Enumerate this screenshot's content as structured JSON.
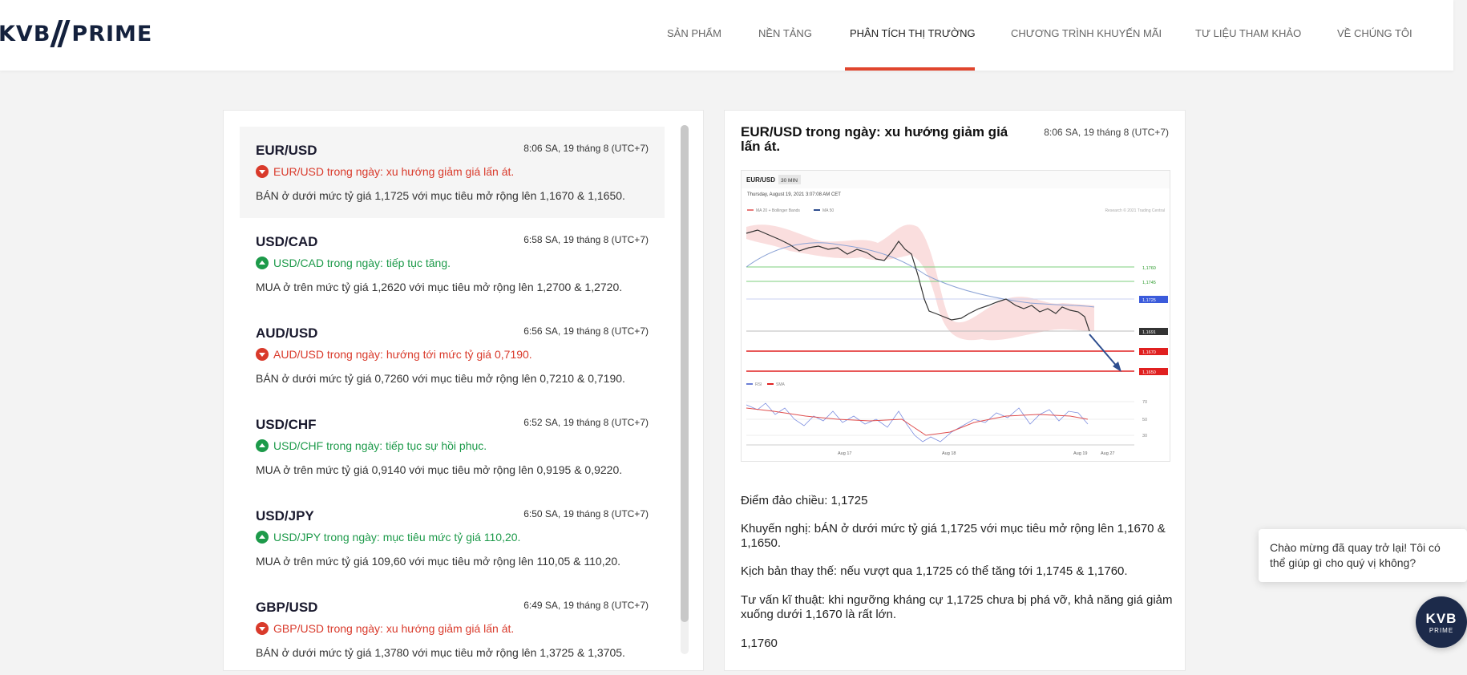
{
  "header": {
    "logo_left": "KVB",
    "logo_right": "PRIME",
    "nav": [
      {
        "label": "SẢN PHẨM"
      },
      {
        "label": "NỀN TẢNG"
      },
      {
        "label": "PHÂN TÍCH THỊ TRƯỜNG",
        "active": true
      },
      {
        "label": "CHƯƠNG TRÌNH KHUYẾN MÃI"
      },
      {
        "label": "TƯ LIỆU THAM KHẢO"
      },
      {
        "label": "VỀ CHÚNG TÔI"
      }
    ]
  },
  "list": {
    "items": [
      {
        "symbol": "EUR/USD",
        "time": "8:06 SA, 19 tháng 8 (UTC+7)",
        "direction": "down",
        "headline": "EUR/USD trong ngày: xu hướng giảm giá lấn át.",
        "desc": "BÁN ở dưới mức tỷ giá 1,1725 với mục tiêu mở rộng lên 1,1670 & 1,1650."
      },
      {
        "symbol": "USD/CAD",
        "time": "6:58 SA, 19 tháng 8 (UTC+7)",
        "direction": "up",
        "headline": "USD/CAD trong ngày: tiếp tục tăng.",
        "desc": "MUA ở trên mức tỷ giá 1,2620 với mục tiêu mở rộng lên 1,2700 & 1,2720."
      },
      {
        "symbol": "AUD/USD",
        "time": "6:56 SA, 19 tháng 8 (UTC+7)",
        "direction": "down",
        "headline": "AUD/USD trong ngày: hướng tới mức tỷ giá 0,7190.",
        "desc": "BÁN ở dưới mức tỷ giá 0,7260 với mục tiêu mở rộng lên 0,7210 & 0,7190."
      },
      {
        "symbol": "USD/CHF",
        "time": "6:52 SA, 19 tháng 8 (UTC+7)",
        "direction": "up",
        "headline": "USD/CHF trong ngày: tiếp tục sự hồi phục.",
        "desc": "MUA ở trên mức tỷ giá 0,9140 với mục tiêu mở rộng lên 0,9195 & 0,9220."
      },
      {
        "symbol": "USD/JPY",
        "time": "6:50 SA, 19 tháng 8 (UTC+7)",
        "direction": "up",
        "headline": "USD/JPY trong ngày: mục tiêu mức tỷ giá 110,20.",
        "desc": "MUA ở trên mức tỷ giá 109,60 với mục tiêu mở rộng lên 110,05 & 110,20."
      },
      {
        "symbol": "GBP/USD",
        "time": "6:49 SA, 19 tháng 8 (UTC+7)",
        "direction": "down",
        "headline": "GBP/USD trong ngày: xu hướng giảm giá lấn át.",
        "desc": "BÁN ở dưới mức tỷ giá 1,3780 với mục tiêu mở rộng lên 1,3725 & 1,3705."
      }
    ]
  },
  "detail": {
    "title": "EUR/USD trong ngày: xu hướng giảm giá lấn át.",
    "time": "8:06 SA, 19 tháng 8 (UTC+7)",
    "chart": {
      "symbol": "EUR/USD",
      "timeframe": "30 MIN",
      "date": "Thursday, August 19, 2021 3:07:08 AM CET",
      "legend_ma": "MA 20 + Bollinger Bands",
      "legend_ma50": "MA 50",
      "credit": "Research © 2021 Trading Central",
      "levels": [
        "1,1760",
        "1,1745",
        "1,1725",
        "1,1691",
        "1,1670",
        "1,1650"
      ],
      "rsi_legend": "RSI",
      "rsi_sma": "SMA",
      "rsi_levels": [
        "70",
        "50",
        "30"
      ],
      "x_labels": [
        "Aug 17",
        "Aug 18",
        "Aug 19",
        "Aug 27"
      ]
    },
    "paragraphs": [
      "Điểm đảo chiều: 1,1725",
      "Khuyến nghị: bÁN ở dưới mức tỷ giá 1,1725 với mục tiêu mở rộng lên 1,1670 & 1,1650.",
      "Kịch bản thay thế: nếu vượt qua 1,1725 có thể tăng tới 1,1745 & 1,1760.",
      "Tư vấn kĩ thuật: khi ngưỡng kháng cự 1,1725 chưa bị phá vỡ, khả năng giá giảm xuống dưới 1,1670 là rất lớn.",
      "1,1760"
    ]
  },
  "chat": {
    "message": "Chào mừng đã quay trở lại! Tôi có thể giúp gì cho quý vị không?",
    "button_main": "KVB",
    "button_sub": "PRIME"
  }
}
